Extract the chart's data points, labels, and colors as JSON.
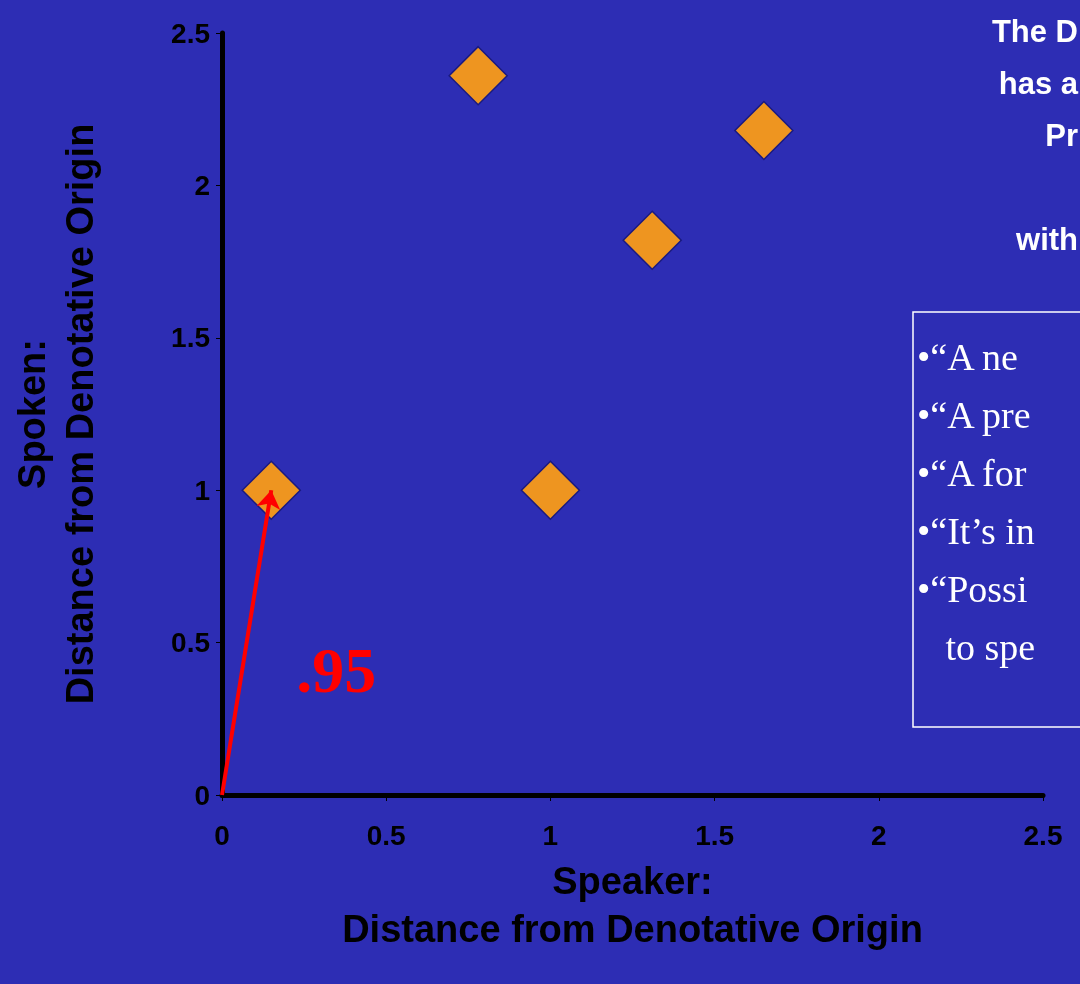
{
  "chart_data": {
    "type": "scatter",
    "title": "The D\nhas a\nPr\n\nwith",
    "xlabel": "Speaker:\nDistance from Denotative Origin",
    "ylabel": "Spoken:\nDistance from Denotative Origin",
    "x": [
      0.15,
      1.0,
      0.78,
      1.31,
      1.65
    ],
    "values": [
      1.0,
      1.0,
      2.36,
      1.82,
      2.18
    ],
    "color": "#ee9520",
    "marker": "diamond",
    "xlim": [
      0,
      2.5
    ],
    "xticks": [
      0,
      0.5,
      1,
      1.5,
      2,
      2.5
    ],
    "ylim": [
      0,
      2.5
    ],
    "yticks": [
      0,
      0.5,
      1,
      1.5,
      2,
      2.5
    ],
    "grid": false,
    "annotations": [
      {
        "text": ".95",
        "x": 0.15,
        "y": 1.0
      },
      "•“A ne",
      "•“A pre",
      "•“A for",
      "•“It’s in",
      "•“Possi",
      "   to spe"
    ]
  }
}
